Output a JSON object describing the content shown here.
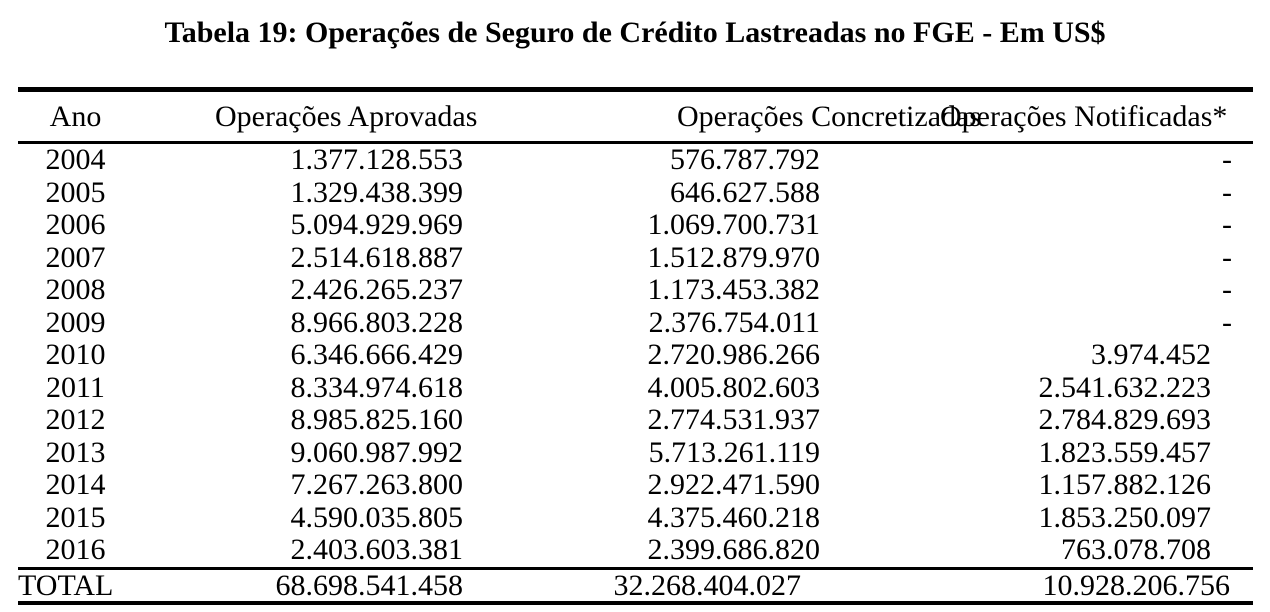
{
  "table": {
    "title": "Tabela 19: Operações de Seguro de Crédito Lastreadas no FGE - Em US$",
    "columns": [
      "Ano",
      "Operações Aprovadas",
      "Operações Concretizadas",
      "Operações Notificadas*"
    ],
    "rows": [
      {
        "ano": "2004",
        "aprovadas": "1.377.128.553",
        "concretizadas": "576.787.792",
        "notificadas": "-"
      },
      {
        "ano": "2005",
        "aprovadas": "1.329.438.399",
        "concretizadas": "646.627.588",
        "notificadas": "-"
      },
      {
        "ano": "2006",
        "aprovadas": "5.094.929.969",
        "concretizadas": "1.069.700.731",
        "notificadas": "-"
      },
      {
        "ano": "2007",
        "aprovadas": "2.514.618.887",
        "concretizadas": "1.512.879.970",
        "notificadas": "-"
      },
      {
        "ano": "2008",
        "aprovadas": "2.426.265.237",
        "concretizadas": "1.173.453.382",
        "notificadas": "-"
      },
      {
        "ano": "2009",
        "aprovadas": "8.966.803.228",
        "concretizadas": "2.376.754.011",
        "notificadas": "-"
      },
      {
        "ano": "2010",
        "aprovadas": "6.346.666.429",
        "concretizadas": "2.720.986.266",
        "notificadas": "3.974.452"
      },
      {
        "ano": "2011",
        "aprovadas": "8.334.974.618",
        "concretizadas": "4.005.802.603",
        "notificadas": "2.541.632.223"
      },
      {
        "ano": "2012",
        "aprovadas": "8.985.825.160",
        "concretizadas": "2.774.531.937",
        "notificadas": "2.784.829.693"
      },
      {
        "ano": "2013",
        "aprovadas": "9.060.987.992",
        "concretizadas": "5.713.261.119",
        "notificadas": "1.823.559.457"
      },
      {
        "ano": "2014",
        "aprovadas": "7.267.263.800",
        "concretizadas": "2.922.471.590",
        "notificadas": "1.157.882.126"
      },
      {
        "ano": "2015",
        "aprovadas": "4.590.035.805",
        "concretizadas": "4.375.460.218",
        "notificadas": "1.853.250.097"
      },
      {
        "ano": "2016",
        "aprovadas": "2.403.603.381",
        "concretizadas": "2.399.686.820",
        "notificadas": "763.078.708"
      }
    ],
    "total": {
      "label": "TOTAL",
      "aprovadas": "68.698.541.458",
      "concretizadas": "32.268.404.027",
      "notificadas": "10.928.206.756"
    }
  }
}
